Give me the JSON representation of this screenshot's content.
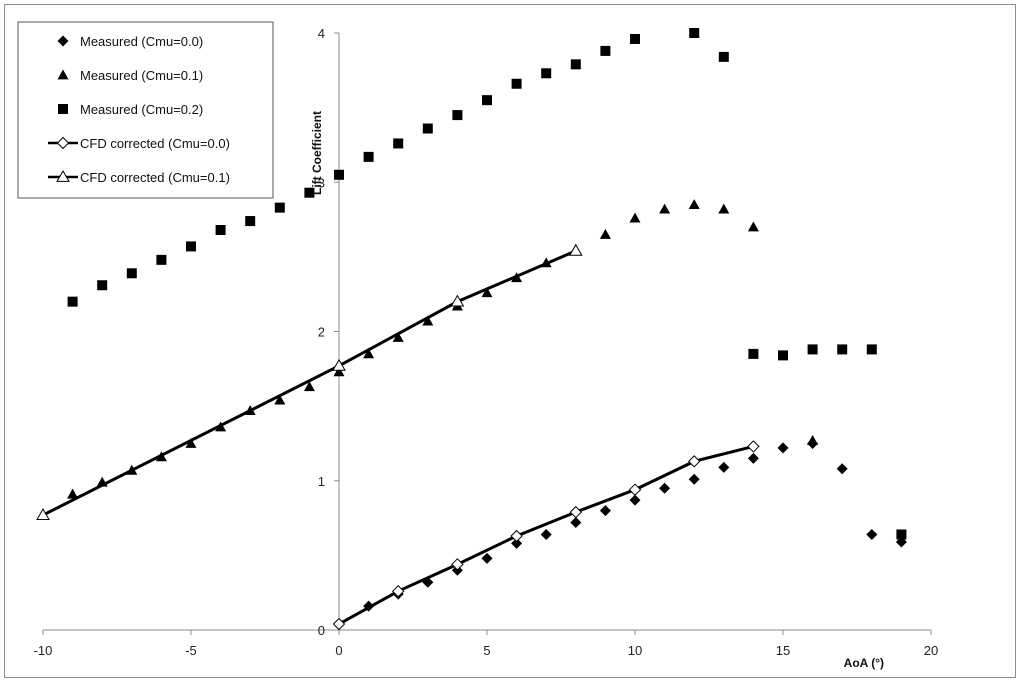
{
  "chart_data": {
    "type": "scatter",
    "xlabel": "AoA (°)",
    "ylabel": "Lift Coefficient",
    "xlim": [
      -10,
      20
    ],
    "ylim": [
      0,
      4
    ],
    "xticks": [
      -10,
      -5,
      0,
      5,
      10,
      15,
      20
    ],
    "yticks": [
      0,
      1,
      2,
      3,
      4
    ],
    "legend_position": "top-left",
    "grid": false,
    "series": [
      {
        "name": "Measured (Cmu=0.0)",
        "kind": "marker",
        "marker": "diamond",
        "x": [
          0,
          1,
          2,
          3,
          4,
          5,
          6,
          7,
          8,
          9,
          10,
          11,
          12,
          13,
          14,
          15,
          16,
          17,
          18,
          19
        ],
        "y": [
          0.04,
          0.16,
          0.24,
          0.32,
          0.4,
          0.48,
          0.58,
          0.64,
          0.72,
          0.8,
          0.87,
          0.95,
          1.01,
          1.09,
          1.15,
          1.22,
          1.25,
          1.08,
          0.64,
          0.59
        ]
      },
      {
        "name": "Measured (Cmu=0.1)",
        "kind": "marker",
        "marker": "triangle",
        "x": [
          -9,
          -8,
          -7,
          -6,
          -5,
          -4,
          -3,
          -2,
          -1,
          0,
          1,
          2,
          3,
          4,
          5,
          6,
          7,
          8,
          9,
          10,
          11,
          12,
          13,
          14,
          16
        ],
        "y": [
          0.91,
          0.99,
          1.07,
          1.16,
          1.25,
          1.36,
          1.47,
          1.54,
          1.63,
          1.73,
          1.85,
          1.96,
          2.07,
          2.17,
          2.26,
          2.36,
          2.46,
          2.55,
          2.65,
          2.76,
          2.82,
          2.85,
          2.82,
          2.7,
          1.27
        ]
      },
      {
        "name": "Measured (Cmu=0.2)",
        "kind": "marker",
        "marker": "square",
        "x": [
          -9,
          -8,
          -7,
          -6,
          -5,
          -4,
          -3,
          -2,
          -1,
          0,
          1,
          2,
          3,
          4,
          5,
          6,
          7,
          8,
          9,
          10,
          12,
          13,
          14,
          15,
          16,
          17,
          18,
          19
        ],
        "y": [
          2.2,
          2.31,
          2.39,
          2.48,
          2.57,
          2.68,
          2.74,
          2.83,
          2.93,
          3.05,
          3.17,
          3.26,
          3.36,
          3.45,
          3.55,
          3.66,
          3.73,
          3.79,
          3.88,
          3.96,
          4.0,
          3.84,
          1.85,
          1.84,
          1.88,
          1.88,
          1.88,
          0.64
        ]
      },
      {
        "name": "CFD corrected (Cmu=0.0)",
        "kind": "line",
        "marker": "open-diamond",
        "x": [
          0,
          2,
          4,
          6,
          8,
          10,
          12,
          14
        ],
        "y": [
          0.04,
          0.26,
          0.44,
          0.63,
          0.79,
          0.94,
          1.13,
          1.23
        ]
      },
      {
        "name": "CFD corrected (Cmu=0.1)",
        "kind": "line",
        "marker": "open-triangle",
        "x": [
          -10,
          0,
          4,
          8
        ],
        "y": [
          0.77,
          1.77,
          2.2,
          2.54
        ]
      }
    ]
  }
}
